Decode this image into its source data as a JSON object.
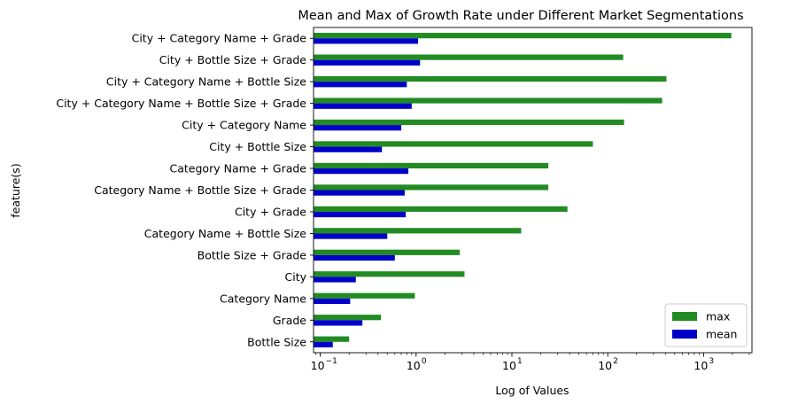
{
  "chart_data": {
    "type": "bar",
    "orientation": "horizontal",
    "title": "Mean and Max of Growth Rate under Different Market Segmentations",
    "xlabel": "Log of Values",
    "ylabel": "feature(s)",
    "xscale": "log",
    "xlim": [
      0.085,
      3200
    ],
    "xticks": [
      {
        "value": 0.1,
        "base": "10",
        "exp": "−1"
      },
      {
        "value": 1,
        "base": "10",
        "exp": "0"
      },
      {
        "value": 10,
        "base": "10",
        "exp": "1"
      },
      {
        "value": 100,
        "base": "10",
        "exp": "2"
      },
      {
        "value": 1000,
        "base": "10",
        "exp": "3"
      }
    ],
    "categories": [
      "City + Category Name + Grade",
      "City + Bottle Size + Grade",
      "City + Category Name + Bottle Size",
      "City + Category Name + Bottle Size + Grade",
      "City + Category Name",
      "City + Bottle Size",
      "Category Name + Grade",
      "Category Name + Bottle Size + Grade",
      "City + Grade",
      "Category Name + Bottle Size",
      "Bottle Size + Grade",
      "City",
      "Category Name",
      "Grade",
      "Bottle Size"
    ],
    "series": [
      {
        "name": "max",
        "color": "#228b22",
        "values": [
          1950,
          145,
          410,
          370,
          148,
          70,
          24,
          24,
          38,
          12.5,
          2.85,
          3.2,
          0.97,
          0.43,
          0.2
        ]
      },
      {
        "name": "mean",
        "color": "#0000c8",
        "values": [
          1.05,
          1.1,
          0.8,
          0.9,
          0.7,
          0.44,
          0.83,
          0.76,
          0.78,
          0.5,
          0.6,
          0.235,
          0.205,
          0.275,
          0.135
        ]
      }
    ],
    "legend": {
      "position": "bottom-right"
    },
    "grid": false
  }
}
